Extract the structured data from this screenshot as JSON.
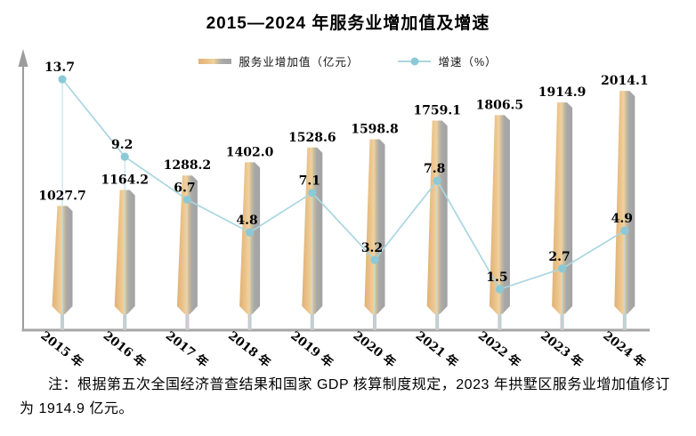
{
  "title": "2015—2024 年服务业增加值及增速",
  "legend": {
    "bar_label": "服务业增加值（亿元）",
    "line_label": "增速（%）"
  },
  "footnote": "注：根据第五次全国经济普查结果和国家 GDP 核算制度规定，2023 年拱墅区服务业增加值修订为 1914.9 亿元。",
  "colors": {
    "bar_tan_dark": "#e0b175",
    "bar_tan": "#ecc68d",
    "bar_tan_light": "#f1d1a0",
    "bar_blend": "#c9bd9c",
    "bar_gray": "#a9a9a9",
    "bar_gray_dark": "#a2a2a2",
    "bar_stem": "#c8c8c8",
    "line_teal": "#a9d6e0",
    "marker_teal": "#8cc9d6",
    "drop_line": "#b6dde6",
    "axis_gray": "#9c9c9c",
    "x_axis_gray": "#a6a6a6",
    "label_black": "#000000"
  },
  "chart_data": {
    "type": "bar+line",
    "title": "2015—2024 年服务业增加值及增速",
    "categories": [
      "2015 年",
      "2016 年",
      "2017 年",
      "2018 年",
      "2019 年",
      "2020 年",
      "2021 年",
      "2022 年",
      "2023 年",
      "2024 年"
    ],
    "series": [
      {
        "name": "服务业增加值（亿元）",
        "type": "bar",
        "values": [
          1027.7,
          1164.2,
          1288.2,
          1402.0,
          1528.6,
          1598.8,
          1759.1,
          1806.5,
          1914.9,
          2014.1
        ],
        "value_labels": [
          "1027.7",
          "1164.2",
          "1288.2",
          "1402.0",
          "1528.6",
          "1598.8",
          "1759.1",
          "1806.5",
          "1914.9",
          "2014.1"
        ]
      },
      {
        "name": "增速（%）",
        "type": "line",
        "values": [
          13.7,
          9.2,
          6.7,
          4.8,
          7.1,
          3.2,
          7.8,
          1.5,
          2.7,
          4.9
        ],
        "value_labels": [
          "13.7",
          "9.2",
          "6.7",
          "4.8",
          "7.1",
          "3.2",
          "7.8",
          "1.5",
          "2.7",
          "4.9"
        ]
      }
    ],
    "legend_position": "top",
    "grid": false,
    "axis_tick_labels_visible": false,
    "data_labels_visible": true,
    "drop_lines_visible": true
  }
}
